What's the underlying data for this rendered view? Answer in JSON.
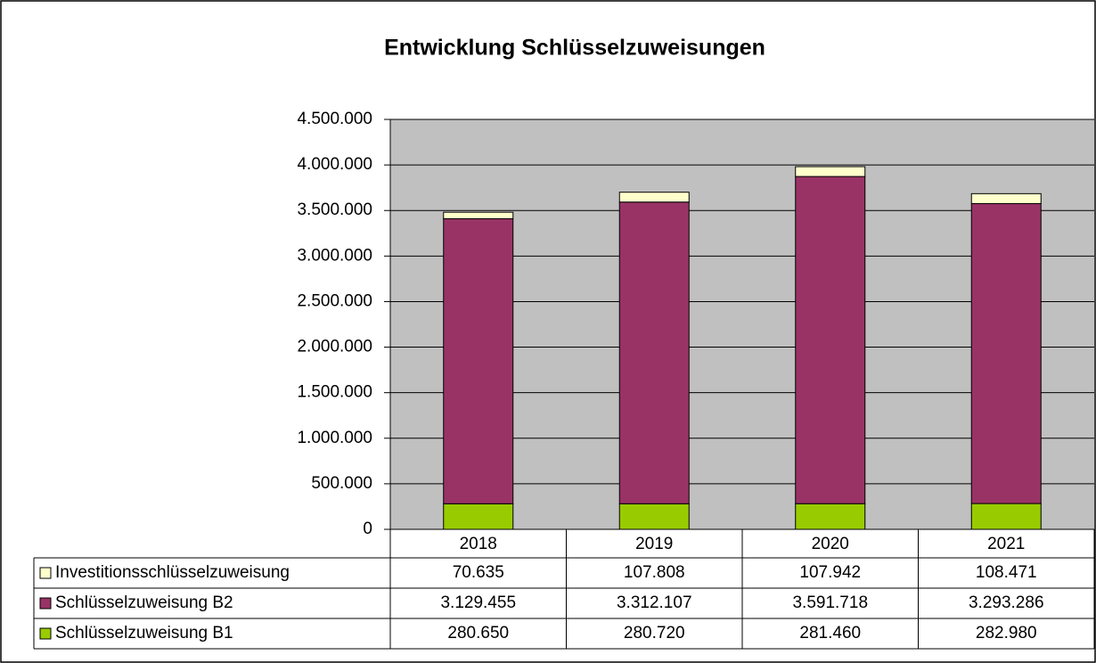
{
  "chart_data": {
    "type": "bar",
    "stacked": true,
    "title": "Entwicklung Schlüsselzuweisungen",
    "categories": [
      "2018",
      "2019",
      "2020",
      "2021"
    ],
    "series": [
      {
        "name": "Schlüsselzuweisung B1",
        "color": "#99cc00",
        "values": [
          280650,
          280720,
          281460,
          282980
        ],
        "value_labels": [
          "280.650",
          "280.720",
          "281.460",
          "282.980"
        ]
      },
      {
        "name": "Schlüsselzuweisung B2",
        "color": "#993366",
        "values": [
          3129455,
          3312107,
          3591718,
          3293286
        ],
        "value_labels": [
          "3.129.455",
          "3.312.107",
          "3.591.718",
          "3.293.286"
        ]
      },
      {
        "name": "Investitionsschlüsselzuweisung",
        "color": "#ffffcc",
        "values": [
          70635,
          107808,
          107942,
          108471
        ],
        "value_labels": [
          "70.635",
          "107.808",
          "107.942",
          "108.471"
        ]
      }
    ],
    "ylim": [
      0,
      4500000
    ],
    "yticks": [
      0,
      {
        "value": 500000,
        "label": "500.000"
      },
      {
        "value": 1000000,
        "label": "1.000.000"
      },
      {
        "value": 1500000,
        "label": "1.500.000"
      },
      {
        "value": 2000000,
        "label": "2.000.000"
      },
      {
        "value": 2500000,
        "label": "2.500.000"
      },
      {
        "value": 3000000,
        "label": "3.000.000"
      },
      {
        "value": 3500000,
        "label": "3.500.000"
      },
      {
        "value": 4000000,
        "label": "4.000.000"
      },
      {
        "value": 4500000,
        "label": "4.500.000"
      }
    ],
    "grid": true,
    "plot_background": "#c0c0c0"
  }
}
